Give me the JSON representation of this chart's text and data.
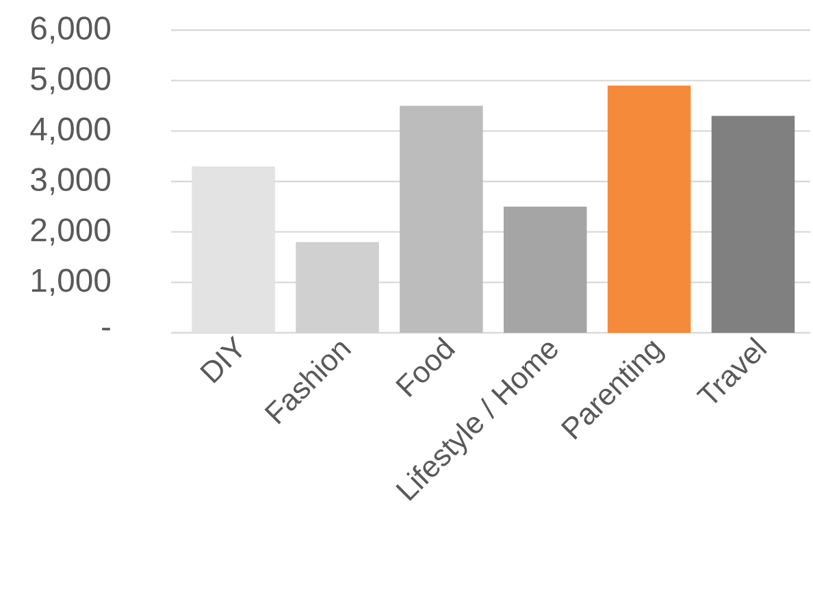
{
  "chart_data": {
    "type": "bar",
    "categories": [
      "DIY",
      "Fashion",
      "Food",
      "Lifestyle / Home",
      "Parenting",
      "Travel"
    ],
    "values": [
      3300,
      1800,
      4500,
      2500,
      4900,
      4300
    ],
    "colors": [
      "#e3e3e3",
      "#d0d0d0",
      "#bcbcbc",
      "#a5a5a5",
      "#f58a3a",
      "#808080"
    ],
    "ylim": [
      0,
      6000
    ],
    "yticks": [
      {
        "value": 0,
        "label": "-"
      },
      {
        "value": 1000,
        "label": "1,000"
      },
      {
        "value": 2000,
        "label": "2,000"
      },
      {
        "value": 3000,
        "label": "3,000"
      },
      {
        "value": 4000,
        "label": "4,000"
      },
      {
        "value": 5000,
        "label": "5,000"
      },
      {
        "value": 6000,
        "label": "6,000"
      }
    ],
    "grid": "y"
  }
}
